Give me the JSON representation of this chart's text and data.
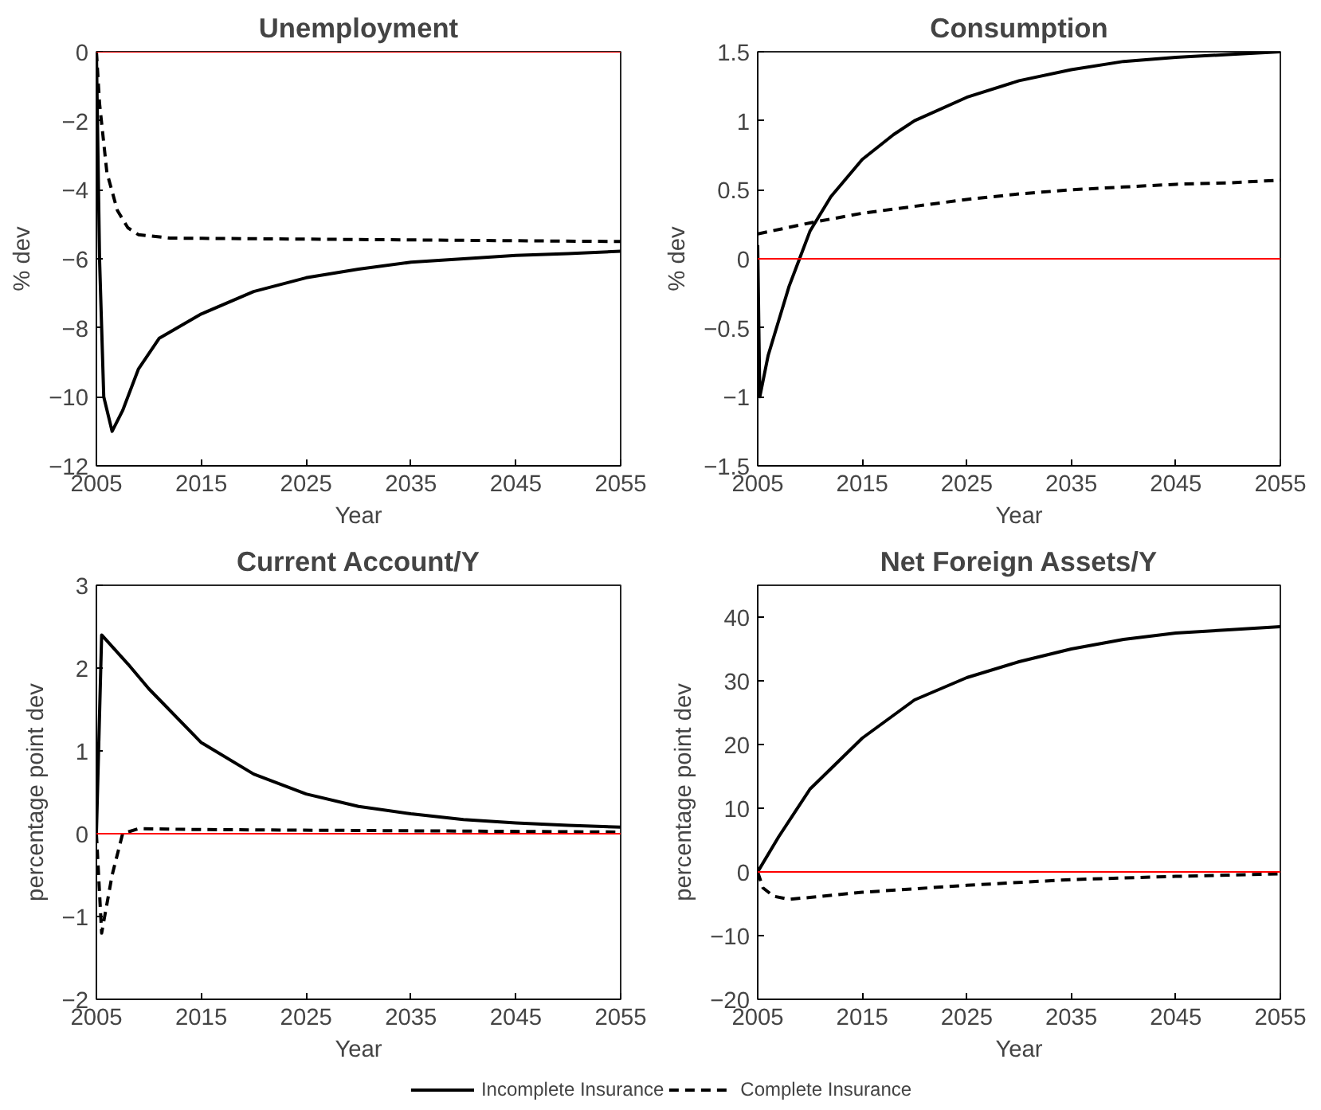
{
  "chart_data": [
    {
      "type": "line",
      "title": "Unemployment",
      "xlabel": "Year",
      "ylabel": "% dev",
      "xlim": [
        2005,
        2055
      ],
      "xticks": [
        2005,
        2015,
        2025,
        2035,
        2045,
        2055
      ],
      "ylim": [
        -12,
        0
      ],
      "yticks": [
        -12,
        -10,
        -8,
        -6,
        -4,
        -2,
        0
      ],
      "grid": false,
      "ref_lines": [
        {
          "axis": "y",
          "value": 0,
          "color": "#ff0000"
        }
      ],
      "series": [
        {
          "color": "#000000",
          "line_style": "solid",
          "x": [
            2005,
            2005.3,
            2005.7,
            2006.5,
            2007.5,
            2009,
            2011,
            2015,
            2020,
            2025,
            2030,
            2035,
            2040,
            2045,
            2050,
            2055
          ],
          "values": [
            0,
            -6,
            -10,
            -11,
            -10.4,
            -9.2,
            -8.3,
            -7.6,
            -6.95,
            -6.55,
            -6.3,
            -6.1,
            -6.0,
            -5.9,
            -5.85,
            -5.78
          ]
        },
        {
          "color": "#000000",
          "line_style": "dashed",
          "x": [
            2005,
            2005.3,
            2006,
            2007,
            2008,
            2009,
            2012,
            2025,
            2055
          ],
          "values": [
            0,
            -1.5,
            -3.5,
            -4.6,
            -5.1,
            -5.3,
            -5.4,
            -5.43,
            -5.5
          ]
        }
      ]
    },
    {
      "type": "line",
      "title": "Consumption",
      "xlabel": "Year",
      "ylabel": "% dev",
      "xlim": [
        2005,
        2055
      ],
      "xticks": [
        2005,
        2015,
        2025,
        2035,
        2045,
        2055
      ],
      "ylim": [
        -1.5,
        1.5
      ],
      "yticks": [
        -1.5,
        -1,
        -0.5,
        0,
        0.5,
        1,
        1.5
      ],
      "grid": false,
      "ref_lines": [
        {
          "axis": "y",
          "value": 0,
          "color": "#ff0000"
        }
      ],
      "series": [
        {
          "color": "#000000",
          "line_style": "solid",
          "x": [
            2005,
            2005.2,
            2006,
            2007,
            2008,
            2009,
            2010,
            2012,
            2015,
            2018,
            2020,
            2025,
            2030,
            2035,
            2040,
            2045,
            2050,
            2055
          ],
          "values": [
            0.1,
            -1.0,
            -0.7,
            -0.45,
            -0.2,
            0.0,
            0.2,
            0.45,
            0.72,
            0.9,
            1.0,
            1.17,
            1.29,
            1.37,
            1.43,
            1.46,
            1.48,
            1.5
          ]
        },
        {
          "color": "#000000",
          "line_style": "dashed",
          "x": [
            2005,
            2010,
            2015,
            2020,
            2025,
            2030,
            2035,
            2040,
            2045,
            2050,
            2055
          ],
          "values": [
            0.18,
            0.26,
            0.33,
            0.38,
            0.43,
            0.47,
            0.5,
            0.52,
            0.54,
            0.55,
            0.57
          ]
        }
      ]
    },
    {
      "type": "line",
      "title": "Current Account/Y",
      "xlabel": "Year",
      "ylabel": "percentage point dev",
      "xlim": [
        2005,
        2055
      ],
      "xticks": [
        2005,
        2015,
        2025,
        2035,
        2045,
        2055
      ],
      "ylim": [
        -2,
        3
      ],
      "yticks": [
        -2,
        -1,
        0,
        1,
        2,
        3
      ],
      "grid": false,
      "ref_lines": [
        {
          "axis": "y",
          "value": 0,
          "color": "#ff0000"
        }
      ],
      "series": [
        {
          "color": "#000000",
          "line_style": "solid",
          "x": [
            2005,
            2005.5,
            2008,
            2010,
            2015,
            2020,
            2025,
            2030,
            2035,
            2040,
            2045,
            2050,
            2055
          ],
          "values": [
            0,
            2.4,
            2.05,
            1.75,
            1.1,
            0.72,
            0.48,
            0.33,
            0.24,
            0.17,
            0.13,
            0.1,
            0.08
          ]
        },
        {
          "color": "#000000",
          "line_style": "dashed",
          "x": [
            2005,
            2005.5,
            2006.5,
            2007.5,
            2009,
            2015,
            2055
          ],
          "values": [
            0,
            -1.2,
            -0.5,
            0.0,
            0.06,
            0.05,
            0.02
          ]
        }
      ]
    },
    {
      "type": "line",
      "title": "Net Foreign Assets/Y",
      "xlabel": "Year",
      "ylabel": "percentage point dev",
      "xlim": [
        2005,
        2055
      ],
      "xticks": [
        2005,
        2015,
        2025,
        2035,
        2045,
        2055
      ],
      "ylim": [
        -20,
        45
      ],
      "yticks": [
        -20,
        -10,
        0,
        10,
        20,
        30,
        40
      ],
      "grid": false,
      "legend": "bottom",
      "ref_lines": [
        {
          "axis": "y",
          "value": 0,
          "color": "#ff0000"
        }
      ],
      "series": [
        {
          "name": "Incomplete Insurance",
          "color": "#000000",
          "line_style": "solid",
          "x": [
            2005,
            2007,
            2010,
            2015,
            2020,
            2025,
            2030,
            2035,
            2040,
            2045,
            2050,
            2055
          ],
          "values": [
            0,
            5.5,
            13,
            21,
            27,
            30.5,
            33,
            35,
            36.5,
            37.5,
            38,
            38.5
          ]
        },
        {
          "name": "Complete Insurance",
          "color": "#000000",
          "line_style": "dashed",
          "x": [
            2005,
            2005.5,
            2006.5,
            2008,
            2010,
            2015,
            2025,
            2035,
            2045,
            2055
          ],
          "values": [
            0,
            -2.5,
            -3.8,
            -4.3,
            -4,
            -3.2,
            -2.1,
            -1.2,
            -0.7,
            -0.3
          ]
        }
      ]
    }
  ]
}
